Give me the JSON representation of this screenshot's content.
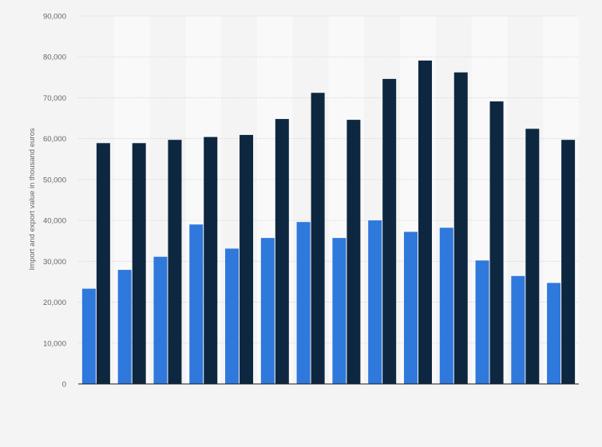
{
  "chart_data": {
    "type": "bar",
    "title": "",
    "xlabel": "",
    "ylabel": "Import and export value in thousand euros",
    "ylim": [
      0,
      90000
    ],
    "yticks": [
      0,
      10000,
      20000,
      30000,
      40000,
      50000,
      60000,
      70000,
      80000,
      90000
    ],
    "ytick_labels": [
      "0",
      "10,000",
      "20,000",
      "30,000",
      "40,000",
      "50,000",
      "60,000",
      "70,000",
      "80,000",
      "90,000"
    ],
    "grid": true,
    "legend": "none",
    "categories": [
      "",
      "",
      "",
      "",
      "",
      "",
      "",
      "",
      "",
      "",
      "",
      "",
      "",
      ""
    ],
    "series": [
      {
        "color": "#2f78dc",
        "values": [
          23300,
          27900,
          31100,
          39000,
          33100,
          35700,
          39600,
          35700,
          40000,
          37200,
          38200,
          30200,
          26400,
          24700
        ]
      },
      {
        "color": "#0e2740",
        "values": [
          58900,
          58900,
          59700,
          60400,
          60900,
          64800,
          71200,
          64600,
          74600,
          79100,
          76200,
          69100,
          62400,
          59700
        ]
      }
    ],
    "colors": {
      "band_light": "#f9f9f9",
      "band_dark": "#f4f4f4"
    }
  }
}
